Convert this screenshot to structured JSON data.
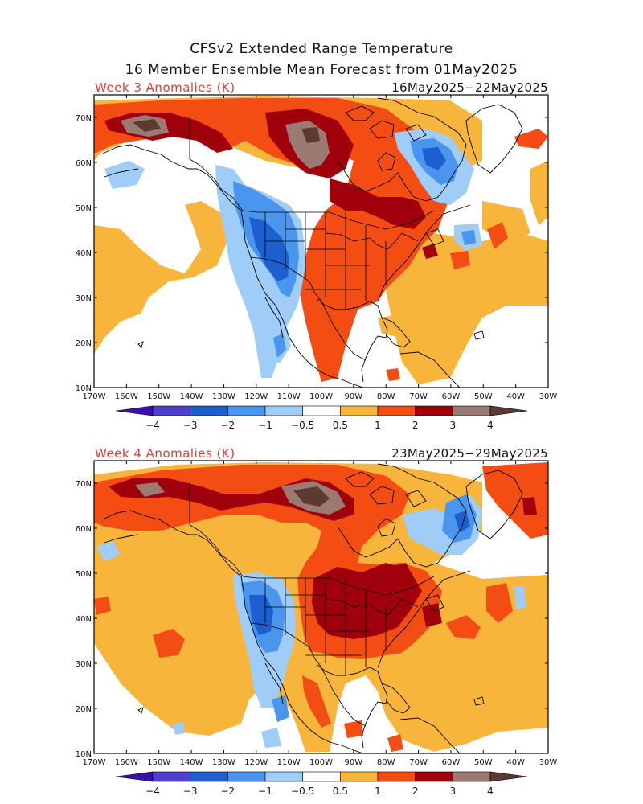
{
  "title_line1": "CFSv2 Extended Range Temperature",
  "title_line2": "16 Member Ensemble Mean Forecast from 01May2025",
  "colors": {
    "c_m4": "#3a0fb0",
    "c_m3": "#4f3fd0",
    "c_m2": "#1e5fd0",
    "c_m1": "#4a95ee",
    "c_m05": "#9fcdf7",
    "c_0": "#ffffff",
    "c_05": "#f7b53c",
    "c_1": "#f44d14",
    "c_2": "#a0000b",
    "c_3": "#9a7a72",
    "c_4": "#5b3a32"
  },
  "colorbar": {
    "labels": [
      "−4",
      "−3",
      "−2",
      "−1",
      "−0.5",
      "0.5",
      "1",
      "2",
      "3",
      "4"
    ]
  },
  "lon_ticks": [
    "170W",
    "160W",
    "150W",
    "140W",
    "130W",
    "120W",
    "110W",
    "100W",
    "90W",
    "80W",
    "70W",
    "60W",
    "50W",
    "40W",
    "30W"
  ],
  "lat_ticks": [
    "70N",
    "60N",
    "50N",
    "40N",
    "30N",
    "20N",
    "10N"
  ],
  "panels": [
    {
      "label": "Week 3 Anomalies (K)",
      "dates": "16May2025−22May2025"
    },
    {
      "label": "Week 4 Anomalies (K)",
      "dates": "23May2025−29May2025"
    }
  ]
}
